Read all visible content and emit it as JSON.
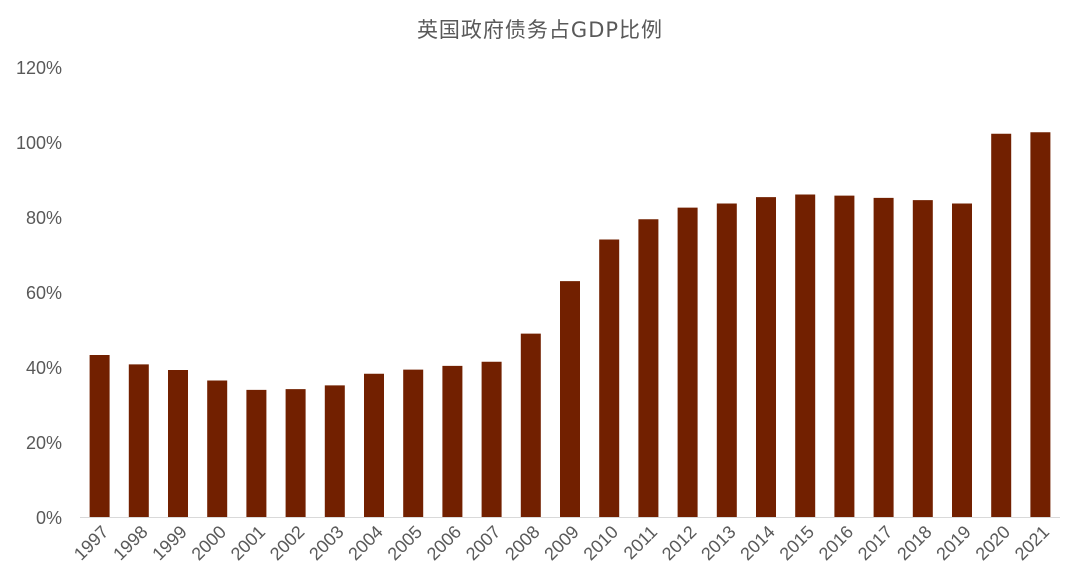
{
  "chart_data": {
    "type": "bar",
    "title": "英国政府债务占GDP比例",
    "xlabel": "",
    "ylabel": "",
    "categories": [
      "1997",
      "1998",
      "1999",
      "2000",
      "2001",
      "2002",
      "2003",
      "2004",
      "2005",
      "2006",
      "2007",
      "2008",
      "2009",
      "2010",
      "2011",
      "2012",
      "2013",
      "2014",
      "2015",
      "2016",
      "2017",
      "2018",
      "2019",
      "2020",
      "2021"
    ],
    "values": [
      43.2,
      40.7,
      39.2,
      36.4,
      33.9,
      34.1,
      35.1,
      38.2,
      39.3,
      40.3,
      41.4,
      48.9,
      62.9,
      74.0,
      79.4,
      82.5,
      83.6,
      85.3,
      86.0,
      85.7,
      85.1,
      84.5,
      83.6,
      102.2,
      102.6
    ],
    "ylim": [
      0,
      120
    ],
    "yticks": [
      0,
      20,
      40,
      60,
      80,
      100,
      120
    ],
    "ytick_labels": [
      "0%",
      "20%",
      "40%",
      "60%",
      "80%",
      "100%",
      "120%"
    ],
    "grid": false,
    "legend": "none",
    "bar_color": "#722000"
  }
}
